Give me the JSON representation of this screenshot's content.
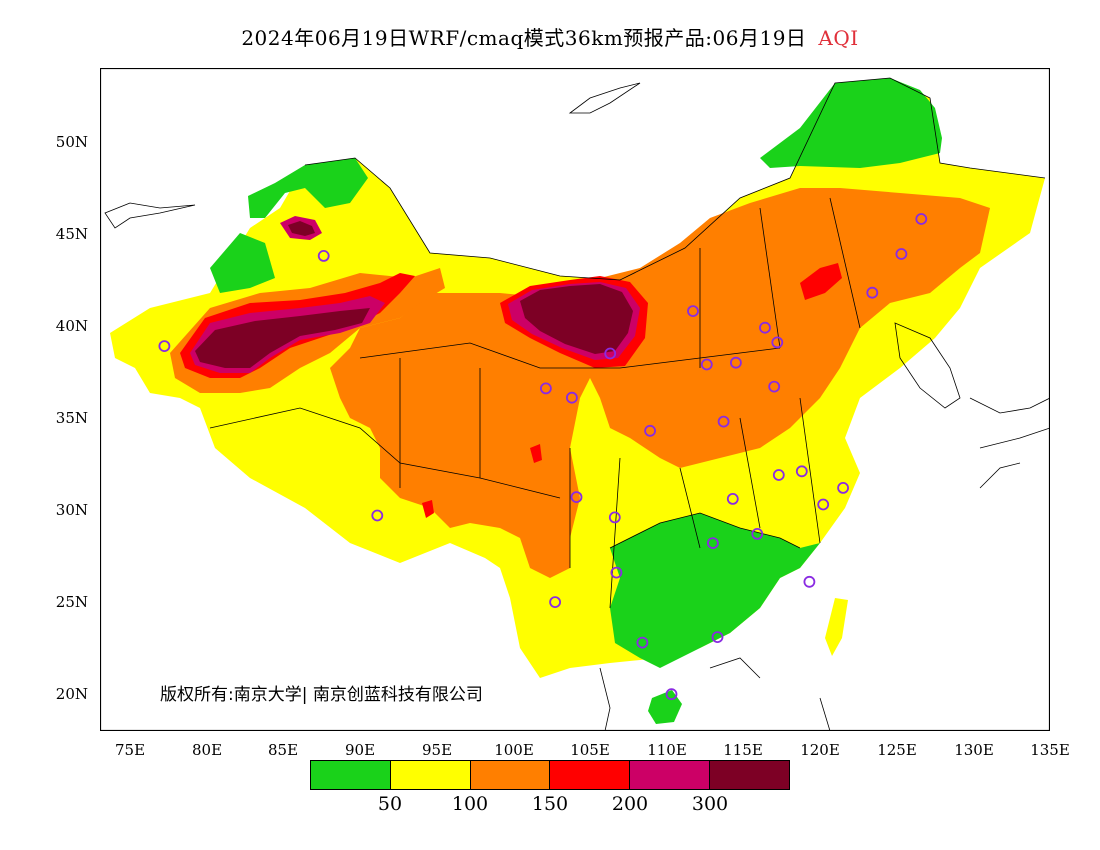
{
  "title": {
    "main": "2024年06月19日WRF/cmaq模式36km预报产品:06月19日",
    "parameter": "AQI"
  },
  "axes": {
    "lat_labels": [
      "50N",
      "45N",
      "40N",
      "35N",
      "30N",
      "25N",
      "20N"
    ],
    "lon_labels": [
      "75E",
      "80E",
      "85E",
      "90E",
      "95E",
      "100E",
      "105E",
      "110E",
      "115E",
      "120E",
      "125E",
      "130E",
      "135E"
    ],
    "lon_range": [
      73,
      135
    ],
    "lat_range": [
      18,
      54
    ]
  },
  "copyright": "版权所有:南京大学| 南京创蓝科技有限公司",
  "legend": {
    "thresholds": [
      "50",
      "100",
      "150",
      "200",
      "300"
    ],
    "colors": [
      "#1ad21a",
      "#ffff00",
      "#ff7f00",
      "#ff0000",
      "#cc0066",
      "#7d0025"
    ]
  },
  "colors": {
    "good": "#1ad21a",
    "moderate": "#ffff00",
    "sensitive": "#ff7f00",
    "unhealthy": "#ff0000",
    "very_unhealthy": "#cc0066",
    "hazardous": "#7d0025",
    "station_marker": "#8a2be2"
  },
  "stations": [
    [
      77.2,
      38.9
    ],
    [
      87.6,
      43.8
    ],
    [
      102.1,
      36.6
    ],
    [
      103.8,
      36.1
    ],
    [
      106.3,
      38.5
    ],
    [
      111.7,
      40.8
    ],
    [
      112.6,
      37.9
    ],
    [
      114.5,
      38.0
    ],
    [
      116.4,
      39.9
    ],
    [
      117.2,
      39.1
    ],
    [
      117.0,
      36.7
    ],
    [
      113.7,
      34.8
    ],
    [
      108.9,
      34.3
    ],
    [
      104.1,
      30.7
    ],
    [
      106.6,
      29.6
    ],
    [
      106.7,
      26.6
    ],
    [
      102.7,
      25.0
    ],
    [
      108.4,
      22.8
    ],
    [
      110.3,
      20.0
    ],
    [
      113.3,
      23.1
    ],
    [
      119.3,
      26.1
    ],
    [
      115.9,
      28.7
    ],
    [
      113.0,
      28.2
    ],
    [
      114.3,
      30.6
    ],
    [
      117.3,
      31.9
    ],
    [
      118.8,
      32.1
    ],
    [
      120.2,
      30.3
    ],
    [
      121.5,
      31.2
    ],
    [
      123.4,
      41.8
    ],
    [
      125.3,
      43.9
    ],
    [
      126.6,
      45.8
    ],
    [
      91.1,
      29.7
    ]
  ]
}
